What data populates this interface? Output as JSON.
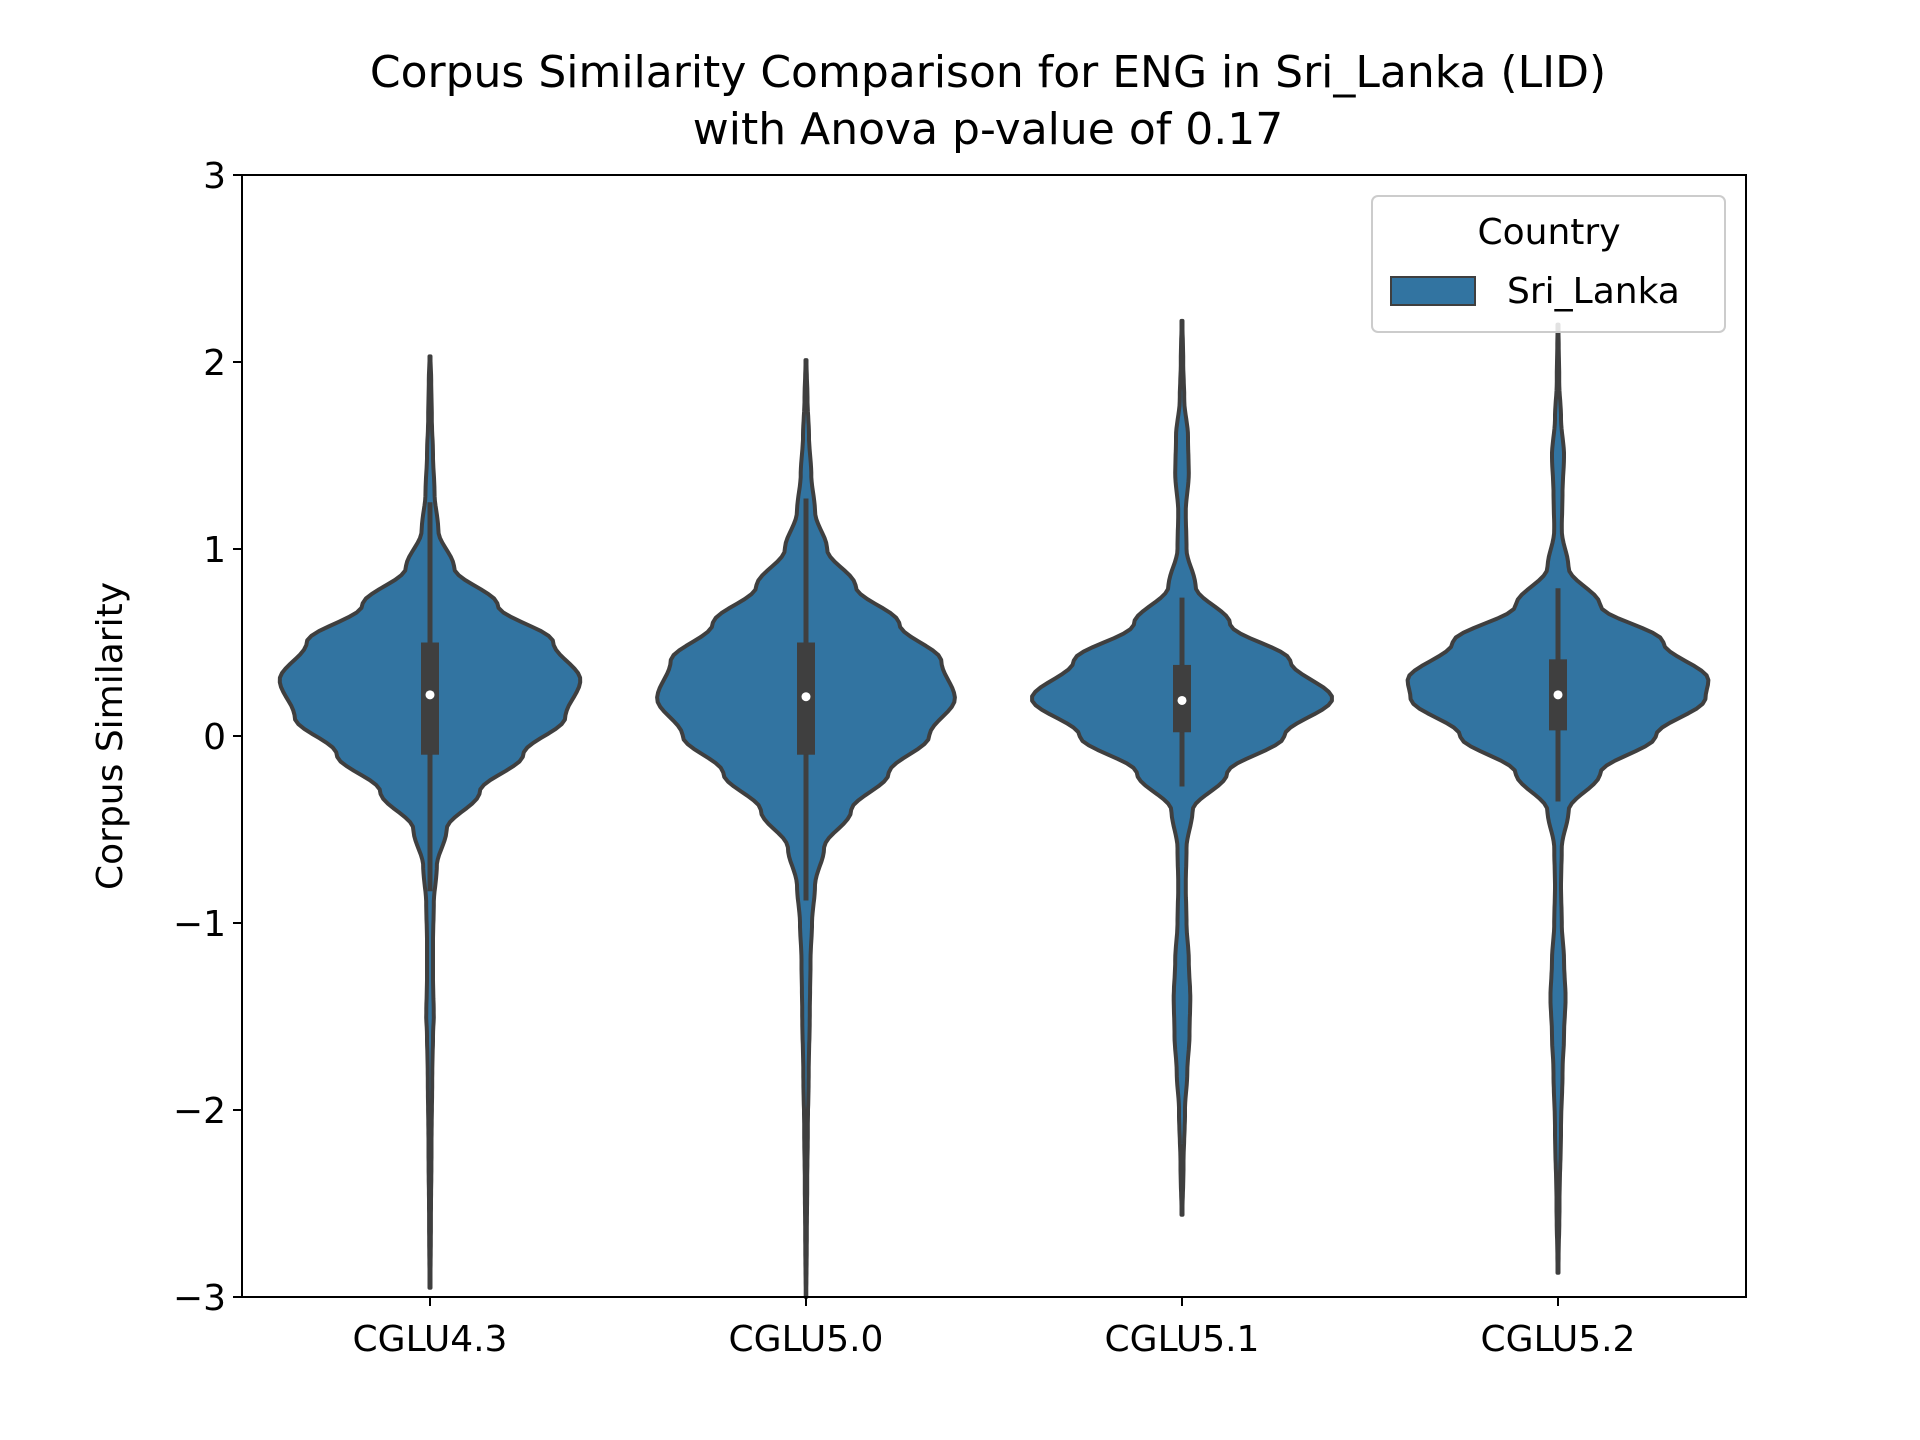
{
  "chart_data": {
    "type": "violin",
    "title_line1": "Corpus Similarity Comparison for ENG in Sri_Lanka (LID)",
    "title_line2": "with Anova p-value of 0.17",
    "ylabel": "Corpus Similarity",
    "xlabel": "",
    "ylim": [
      -3,
      3
    ],
    "yticks": [
      -3,
      -2,
      -1,
      0,
      1,
      2,
      3
    ],
    "ytick_labels": [
      "−3",
      "−2",
      "−1",
      "0",
      "1",
      "2",
      "3"
    ],
    "categories": [
      "CGLU4.3",
      "CGLU5.0",
      "CGLU5.1",
      "CGLU5.2"
    ],
    "legend": {
      "title": "Country",
      "entries": [
        {
          "name": "Sri_Lanka",
          "color": "#3274a1"
        }
      ],
      "placement": "top-right"
    },
    "colors": {
      "violin_fill": "#3274a1",
      "violin_edge": "#3f3f3f",
      "box": "#3f3f3f",
      "median": "#ffffff"
    },
    "violins": [
      {
        "category": "CGLU4.3",
        "median": 0.22,
        "q1": -0.1,
        "q3": 0.5,
        "whisker_low": -0.83,
        "whisker_high": 1.25,
        "y_min": -2.95,
        "y_max": 2.03,
        "profile": [
          [
            -2.95,
            0.003
          ],
          [
            -2.6,
            0.006
          ],
          [
            -2.2,
            0.01
          ],
          [
            -1.8,
            0.015
          ],
          [
            -1.6,
            0.02
          ],
          [
            -1.5,
            0.025
          ],
          [
            -1.3,
            0.02
          ],
          [
            -1.1,
            0.02
          ],
          [
            -0.9,
            0.025
          ],
          [
            -0.7,
            0.045
          ],
          [
            -0.5,
            0.11
          ],
          [
            -0.3,
            0.33
          ],
          [
            -0.1,
            0.62
          ],
          [
            0.1,
            0.9
          ],
          [
            0.3,
            1.0
          ],
          [
            0.5,
            0.82
          ],
          [
            0.7,
            0.45
          ],
          [
            0.9,
            0.16
          ],
          [
            1.1,
            0.055
          ],
          [
            1.3,
            0.03
          ],
          [
            1.5,
            0.02
          ],
          [
            1.7,
            0.012
          ],
          [
            1.9,
            0.008
          ],
          [
            2.03,
            0.003
          ]
        ]
      },
      {
        "category": "CGLU5.0",
        "median": 0.21,
        "q1": -0.1,
        "q3": 0.5,
        "whisker_low": -0.88,
        "whisker_high": 1.27,
        "y_min": -3.0,
        "y_max": 2.01,
        "profile": [
          [
            -3.0,
            0.002
          ],
          [
            -2.7,
            0.005
          ],
          [
            -2.4,
            0.008
          ],
          [
            -2.1,
            0.012
          ],
          [
            -1.8,
            0.018
          ],
          [
            -1.5,
            0.025
          ],
          [
            -1.2,
            0.03
          ],
          [
            -1.0,
            0.04
          ],
          [
            -0.8,
            0.06
          ],
          [
            -0.6,
            0.12
          ],
          [
            -0.4,
            0.3
          ],
          [
            -0.2,
            0.55
          ],
          [
            0.0,
            0.82
          ],
          [
            0.2,
            0.99
          ],
          [
            0.4,
            0.9
          ],
          [
            0.6,
            0.62
          ],
          [
            0.8,
            0.33
          ],
          [
            1.0,
            0.14
          ],
          [
            1.2,
            0.06
          ],
          [
            1.4,
            0.035
          ],
          [
            1.6,
            0.02
          ],
          [
            1.8,
            0.01
          ],
          [
            2.01,
            0.003
          ]
        ]
      },
      {
        "category": "CGLU5.1",
        "median": 0.19,
        "q1": 0.02,
        "q3": 0.38,
        "whisker_low": -0.27,
        "whisker_high": 0.74,
        "y_min": -2.56,
        "y_max": 2.22,
        "profile": [
          [
            -2.56,
            0.003
          ],
          [
            -2.3,
            0.01
          ],
          [
            -2.0,
            0.02
          ],
          [
            -1.8,
            0.035
          ],
          [
            -1.6,
            0.05
          ],
          [
            -1.4,
            0.055
          ],
          [
            -1.2,
            0.045
          ],
          [
            -1.0,
            0.03
          ],
          [
            -0.8,
            0.025
          ],
          [
            -0.6,
            0.03
          ],
          [
            -0.4,
            0.07
          ],
          [
            -0.2,
            0.3
          ],
          [
            0.0,
            0.68
          ],
          [
            0.2,
            1.0
          ],
          [
            0.4,
            0.72
          ],
          [
            0.6,
            0.32
          ],
          [
            0.8,
            0.09
          ],
          [
            1.0,
            0.03
          ],
          [
            1.2,
            0.025
          ],
          [
            1.4,
            0.045
          ],
          [
            1.6,
            0.04
          ],
          [
            1.8,
            0.015
          ],
          [
            2.0,
            0.008
          ],
          [
            2.22,
            0.003
          ]
        ]
      },
      {
        "category": "CGLU5.2",
        "median": 0.22,
        "q1": 0.03,
        "q3": 0.41,
        "whisker_low": -0.35,
        "whisker_high": 0.79,
        "y_min": -2.87,
        "y_max": 2.2,
        "profile": [
          [
            -2.87,
            0.003
          ],
          [
            -2.5,
            0.01
          ],
          [
            -2.1,
            0.02
          ],
          [
            -1.8,
            0.03
          ],
          [
            -1.6,
            0.04
          ],
          [
            -1.4,
            0.05
          ],
          [
            -1.2,
            0.04
          ],
          [
            -1.0,
            0.025
          ],
          [
            -0.8,
            0.02
          ],
          [
            -0.6,
            0.025
          ],
          [
            -0.4,
            0.07
          ],
          [
            -0.2,
            0.28
          ],
          [
            0.0,
            0.65
          ],
          [
            0.2,
            0.98
          ],
          [
            0.3,
            1.0
          ],
          [
            0.5,
            0.7
          ],
          [
            0.7,
            0.28
          ],
          [
            0.9,
            0.07
          ],
          [
            1.1,
            0.025
          ],
          [
            1.3,
            0.03
          ],
          [
            1.5,
            0.04
          ],
          [
            1.7,
            0.02
          ],
          [
            1.9,
            0.008
          ],
          [
            2.2,
            0.003
          ]
        ]
      }
    ]
  }
}
